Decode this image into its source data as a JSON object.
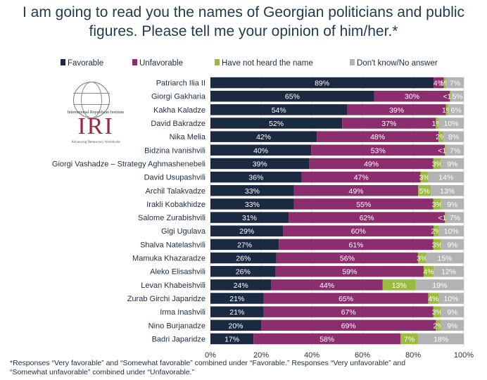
{
  "title_line1": "I am going to read you the names of Georgian politicians and public",
  "title_line2": "figures. Please tell me your opinion of him/her.*",
  "logo": {
    "org_text": "International Republican Institute",
    "acronym": "IRI",
    "tagline": "Advancing Democracy Worldwide"
  },
  "footnote_line1": "*Responses “Very favorable” and “Somewhat favorable” combined under “Favorable.” Responses “Very unfavorable” and",
  "footnote_line2": "“Somewhat unfavorable” combined under “Unfavorable.”",
  "chart_data": {
    "type": "bar",
    "orientation": "horizontal",
    "stacked": true,
    "categories": [
      "Patriarch Ilia II",
      "Giorgi Gakharia",
      "Kakha Kaladze",
      "David Bakradze",
      "Nika Melia",
      "Bidzina Ivanishvili",
      "Giorgi Vashadze – Strategy Aghmashenebeli",
      "David Usupashvili",
      "Archil Talakvadze",
      "Irakli Kobakhidze",
      "Salome Zurabishvili",
      "Gigi Ugulava",
      "Shalva Natelashvili",
      "Mamuka Khazaradze",
      "Aleko Elisashvili",
      "Levan Khabeishvili",
      "Zurab Girchi Japaridze",
      "Irma Inashvili",
      "Nino Burjanadze",
      "Badri Japaridze"
    ],
    "series": [
      {
        "name": "Favorable",
        "color": "#1b2a41",
        "values": [
          89,
          65,
          54,
          52,
          42,
          40,
          39,
          36,
          33,
          33,
          31,
          29,
          27,
          26,
          26,
          24,
          21,
          21,
          20,
          17
        ],
        "labels": [
          "89%",
          "65%",
          "54%",
          "52%",
          "42%",
          "40%",
          "39%",
          "36%",
          "33%",
          "33%",
          "31%",
          "29%",
          "27%",
          "26%",
          "26%",
          "24%",
          "21%",
          "21%",
          "20%",
          "17%"
        ]
      },
      {
        "name": "Unfavorable",
        "color": "#8c2e6d",
        "values": [
          4,
          30,
          39,
          37,
          48,
          53,
          49,
          47,
          49,
          55,
          62,
          60,
          61,
          56,
          59,
          44,
          65,
          67,
          69,
          58
        ],
        "labels": [
          "4%",
          "30%",
          "39%",
          "37%",
          "48%",
          "53%",
          "49%",
          "47%",
          "49%",
          "55%",
          "62%",
          "60%",
          "61%",
          "56%",
          "59%",
          "44%",
          "65%",
          "67%",
          "69%",
          "58%"
        ]
      },
      {
        "name": "Have not heard the name",
        "color": "#9bbb3d",
        "values": [
          1,
          0.5,
          1,
          1,
          2,
          0.5,
          3,
          3,
          5,
          3,
          0.5,
          2,
          3,
          3,
          4,
          13,
          4,
          3,
          2,
          7
        ],
        "labels": [
          "1%",
          "<1%",
          "1%",
          "1%",
          "2%",
          "<1%",
          "3%",
          "3%",
          "5%",
          "3%",
          "<1%",
          "2%",
          "3%",
          "3%",
          "4%",
          "13%",
          "4%",
          "3%",
          "2%",
          "7%"
        ]
      },
      {
        "name": "Don't know/No answer",
        "color": "#b3b3b3",
        "values": [
          7,
          5,
          6,
          10,
          8,
          7,
          9,
          14,
          13,
          9,
          7,
          10,
          9,
          15,
          12,
          19,
          10,
          9,
          9,
          18
        ],
        "labels": [
          "7%",
          "5%",
          "6%",
          "10%",
          "8%",
          "7%",
          "9%",
          "14%",
          "13%",
          "9%",
          "7%",
          "10%",
          "9%",
          "15%",
          "12%",
          "19%",
          "10%",
          "9%",
          "9%",
          "18%"
        ]
      }
    ],
    "xlim": [
      0,
      100
    ],
    "xticks": [
      "0%",
      "20%",
      "40%",
      "60%",
      "80%",
      "100%"
    ],
    "grid": true,
    "legend_position": "top"
  }
}
